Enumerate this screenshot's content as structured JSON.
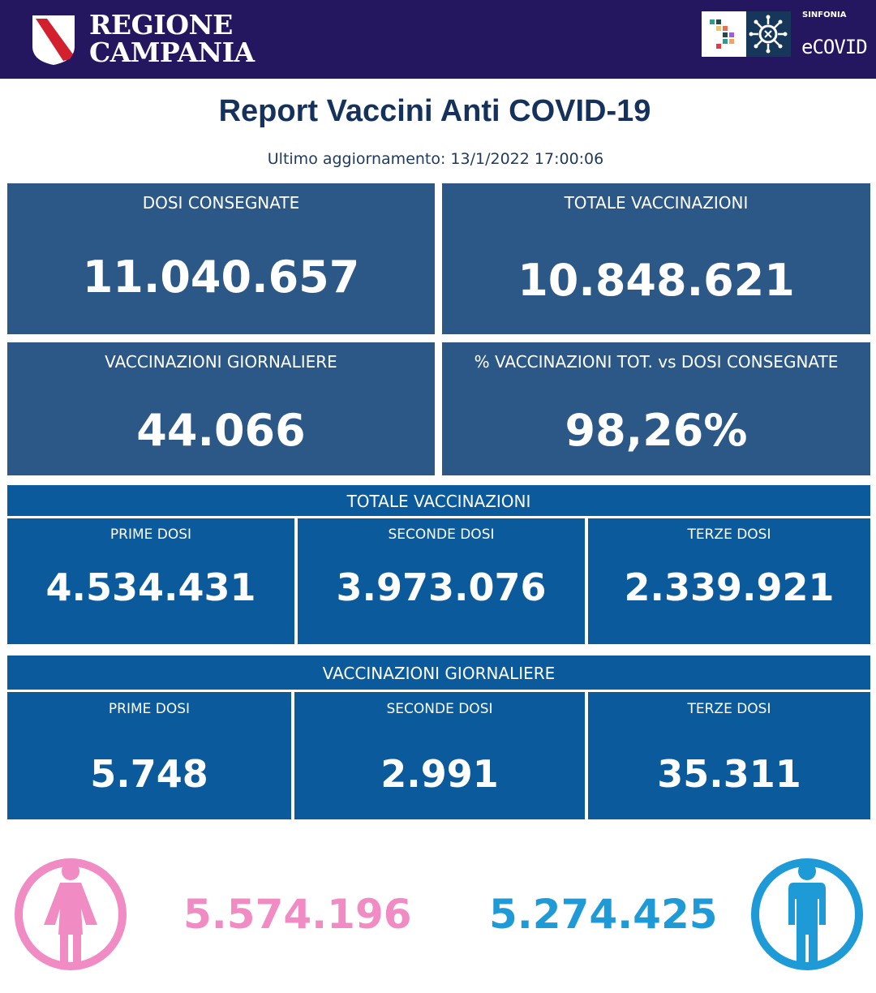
{
  "header": {
    "region_line1": "REGIONE",
    "region_line2": "CAMPANIA",
    "brand_small": "SINFONIA",
    "brand_name": "eCOVID"
  },
  "title": "Report Vaccini Anti COVID-19",
  "updated": "Ultimo aggiornamento: 13/1/2022  17:00:06",
  "summary": [
    {
      "label": "DOSI  CONSEGNATE",
      "value": "11.040.657"
    },
    {
      "label": "TOTALE VACCINAZIONI",
      "value": "10.848.621"
    },
    {
      "label": "VACCINAZIONI GIORNALIERE",
      "value": "44.066"
    },
    {
      "label": "% VACCINAZIONI TOT. vs DOSI CONSEGNATE",
      "value": "98,26%"
    }
  ],
  "totale": {
    "header": "TOTALE VACCINAZIONI",
    "items": [
      {
        "label": "PRIME DOSI",
        "value": "4.534.431"
      },
      {
        "label": "SECONDE DOSI",
        "value": "3.973.076"
      },
      {
        "label": "TERZE DOSI",
        "value": "2.339.921"
      }
    ]
  },
  "giornaliere": {
    "header": "VACCINAZIONI GIORNALIERE",
    "items": [
      {
        "label": "PRIME DOSI",
        "value": "5.748"
      },
      {
        "label": "SECONDE DOSI",
        "value": "2.991"
      },
      {
        "label": "TERZE DOSI",
        "value": "35.311"
      }
    ]
  },
  "gender": {
    "female": {
      "value": "5.574.196",
      "icon": "female-person-icon",
      "color": "#f08cc3"
    },
    "male": {
      "value": "5.274.425",
      "icon": "male-person-icon",
      "color": "#1e9ad6"
    }
  },
  "colors": {
    "header_bg": "#25175f",
    "card_bg": "#2c5887",
    "panel_bg": "#0b5a9c",
    "title": "#14325c"
  }
}
